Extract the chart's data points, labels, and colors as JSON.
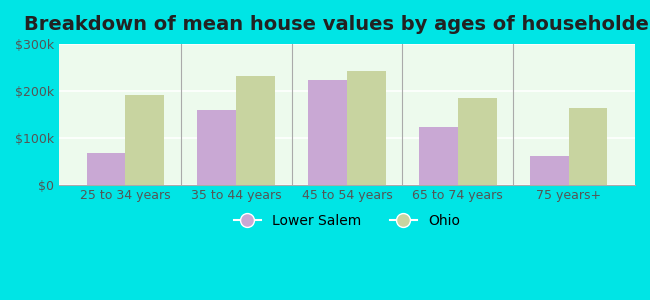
{
  "title": "Breakdown of mean house values by ages of householders",
  "categories": [
    "25 to 34 years",
    "35 to 44 years",
    "45 to 54 years",
    "65 to 74 years",
    "75 years+"
  ],
  "lower_salem": [
    67000,
    160000,
    222000,
    123000,
    60000
  ],
  "ohio": [
    192000,
    232000,
    242000,
    185000,
    163000
  ],
  "lower_salem_color": "#c9a8d4",
  "ohio_color": "#c8d4a0",
  "ylim": [
    0,
    300000
  ],
  "yticks": [
    0,
    100000,
    200000,
    300000
  ],
  "ytick_labels": [
    "$0",
    "$100k",
    "$200k",
    "$300k"
  ],
  "background_color": "#00e5e5",
  "plot_bg": "#edfaed",
  "bar_width": 0.35,
  "legend_labels": [
    "Lower Salem",
    "Ohio"
  ],
  "title_fontsize": 14,
  "tick_fontsize": 9,
  "legend_fontsize": 10
}
